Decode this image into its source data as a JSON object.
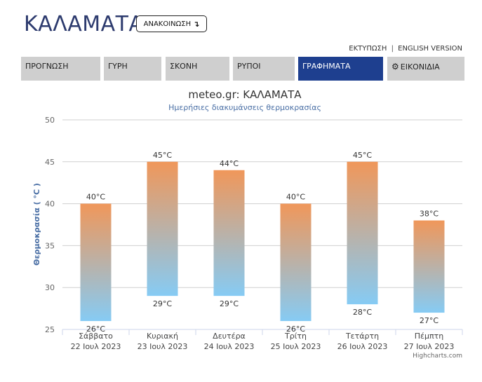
{
  "header": {
    "city_title": "ΚΑΛΑΜΑΤΑ",
    "announcement_label": "ΑΝΑΚΟΙΝΩΣΗ",
    "announcement_arrow": "↴"
  },
  "top_links": {
    "print_label": "ΕΚΤΥΠΩΣΗ",
    "separator": "|",
    "english_label": "ENGLISH VERSION"
  },
  "tabs": [
    {
      "label": "ΠΡΟΓΝΩΣΗ",
      "active": false
    },
    {
      "label": "ΓΥΡΗ",
      "active": false
    },
    {
      "label": "ΣΚΟΝΗ",
      "active": false
    },
    {
      "label": "ΡΥΠΟΙ",
      "active": false
    },
    {
      "label": "ΓΡΑΦΗΜΑΤΑ",
      "active": true
    },
    {
      "label": "ΕΙΚΟΝΙΔΙΑ",
      "active": false,
      "icon": "gear-icon"
    }
  ],
  "chart_data": {
    "type": "bar",
    "subtype": "columnrange",
    "title": "meteo.gr: ΚΑΛΑΜΑΤΑ",
    "subtitle": "Ημερήσιες διακυμάνσεις θερμοκρασίας",
    "xlabel": "",
    "ylabel": "Θερμοκρασία ( °C )",
    "ylim": [
      25,
      50
    ],
    "yticks": [
      25,
      30,
      35,
      40,
      45,
      50
    ],
    "grid": true,
    "legend": "none",
    "unit_suffix": "°C",
    "categories": [
      {
        "day": "Σάββατο",
        "date": "22 Ιουλ 2023"
      },
      {
        "day": "Κυριακή",
        "date": "23 Ιουλ 2023"
      },
      {
        "day": "Δευτέρα",
        "date": "24 Ιουλ 2023"
      },
      {
        "day": "Τρίτη",
        "date": "25 Ιουλ 2023"
      },
      {
        "day": "Τετάρτη",
        "date": "26 Ιουλ 2023"
      },
      {
        "day": "Πέμπτη",
        "date": "27 Ιουλ 2023"
      }
    ],
    "low": [
      26,
      29,
      29,
      26,
      28,
      27
    ],
    "high": [
      40,
      45,
      44,
      40,
      45,
      38
    ],
    "colors": {
      "hot": "#f0975a",
      "cold": "#86cbf4",
      "axis_title": "#4a6fa5",
      "title": "#333333",
      "subtitle": "#4a6fa5"
    }
  },
  "credits": "Highcharts.com"
}
